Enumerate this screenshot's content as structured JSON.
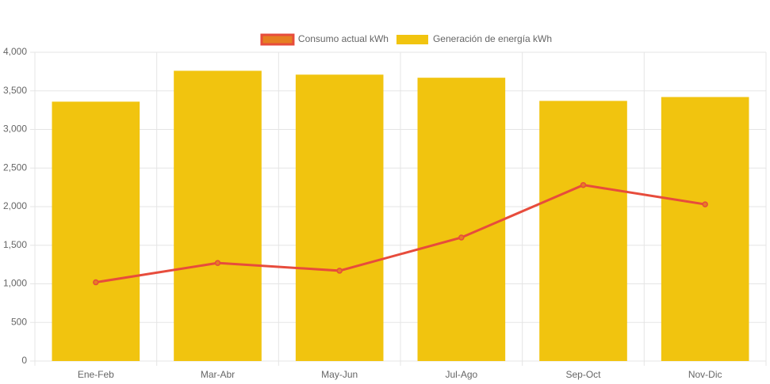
{
  "chart_data": {
    "type": "bar-line",
    "categories": [
      "Ene-Feb",
      "Mar-Abr",
      "May-Jun",
      "Jul-Ago",
      "Sep-Oct",
      "Nov-Dic"
    ],
    "series": [
      {
        "name": "Consumo actual kWh",
        "type": "line",
        "color": "#e74c3c",
        "fill": "#e67e22",
        "values": [
          1020,
          1270,
          1170,
          1600,
          2280,
          2030
        ]
      },
      {
        "name": "Generación de energía kWh",
        "type": "bar",
        "color": "#f1c40f",
        "values": [
          3360,
          3760,
          3710,
          3670,
          3370,
          3420
        ]
      }
    ],
    "ylim": [
      0,
      4000
    ],
    "yticks": [
      0,
      500,
      {
        "value": 1000,
        "label": "1,000"
      },
      {
        "value": 1500,
        "label": "1,500"
      },
      {
        "value": 2000,
        "label": "2,000"
      },
      {
        "value": 2500,
        "label": "2,500"
      },
      {
        "value": 3000,
        "label": "3,000"
      },
      {
        "value": 3500,
        "label": "3,500"
      },
      {
        "value": 4000,
        "label": "4,000"
      }
    ],
    "grid": true,
    "legend": "top"
  }
}
